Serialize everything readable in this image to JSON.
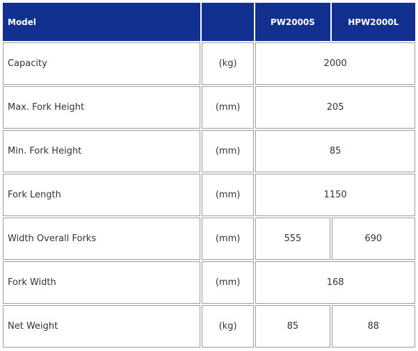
{
  "table": {
    "header": {
      "label": "Model",
      "unit": "",
      "models": [
        "PW2000S",
        "HPW2000L"
      ]
    },
    "rows": [
      {
        "label": "Capacity",
        "unit": "(kg)",
        "values": [
          "2000"
        ]
      },
      {
        "label": "Max. Fork Height",
        "unit": "(mm)",
        "values": [
          "205"
        ]
      },
      {
        "label": "Min. Fork Height",
        "unit": "(mm)",
        "values": [
          "85"
        ]
      },
      {
        "label": "Fork Length",
        "unit": "(mm)",
        "values": [
          "1150"
        ]
      },
      {
        "label": "Width Overall Forks",
        "unit": "(mm)",
        "values": [
          "555",
          "690"
        ]
      },
      {
        "label": "Fork Width",
        "unit": "(mm)",
        "values": [
          "168"
        ]
      },
      {
        "label": "Net Weight",
        "unit": "(kg)",
        "values": [
          "85",
          "88"
        ]
      }
    ]
  },
  "colors": {
    "header_bg": "#12308f",
    "header_text": "#ffffff",
    "border": "#9a9a9a",
    "body_text": "#333333"
  }
}
